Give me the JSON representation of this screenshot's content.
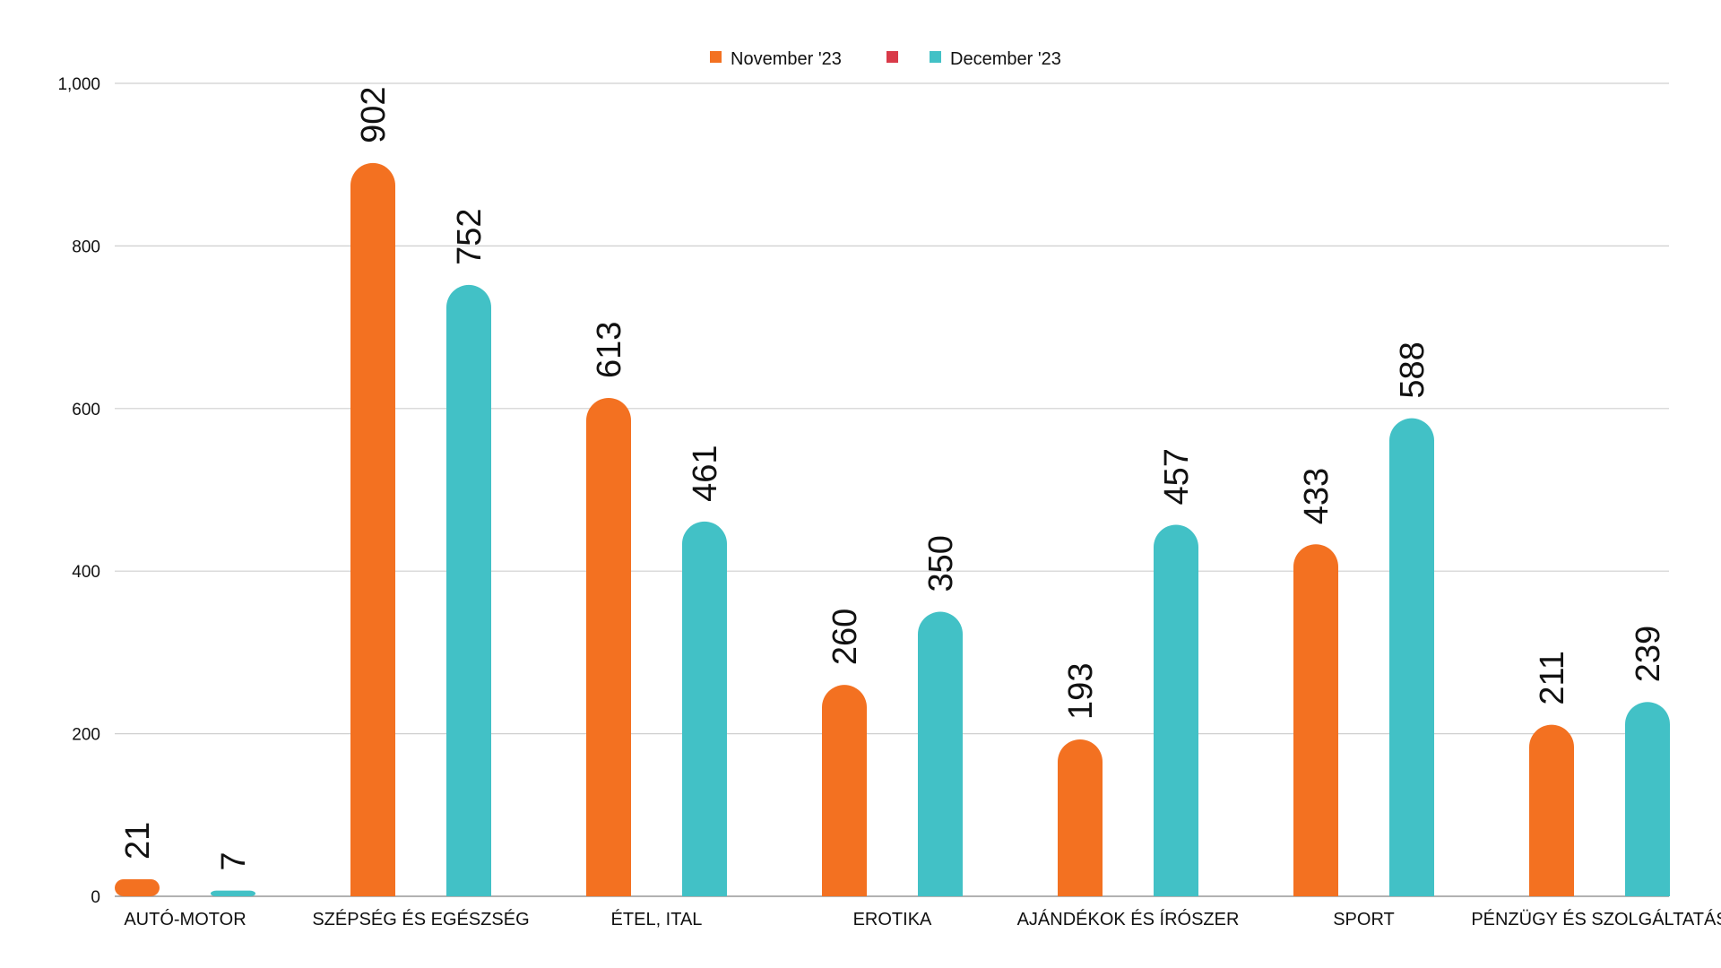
{
  "chart_data": {
    "type": "bar",
    "title": "",
    "xlabel": "",
    "ylabel": "",
    "ylim": [
      0,
      1000
    ],
    "yticks": [
      0,
      200,
      400,
      600,
      800,
      1000
    ],
    "ytick_labels": [
      "0",
      "200",
      "400",
      "600",
      "800",
      "1,000"
    ],
    "categories": [
      "AUTÓ-MOTOR",
      "SZÉPSÉG ÉS EGÉSZSÉG",
      "ÉTEL, ITAL",
      "EROTIKA",
      "AJÁNDÉKOK ÉS ÍRÓSZER",
      "SPORT",
      "PÉNZÜGY ÉS SZOLGÁLTATÁS"
    ],
    "series": [
      {
        "name": "November '23",
        "color": "#f37121",
        "values": [
          21,
          902,
          613,
          260,
          193,
          433,
          211
        ]
      },
      {
        "name": "December '23",
        "color": "#42c1c6",
        "values": [
          7,
          752,
          461,
          350,
          457,
          588,
          239
        ]
      }
    ],
    "legend": {
      "position": "top-center",
      "items": [
        {
          "label": "November '23",
          "color": "#f37121"
        },
        {
          "label": "",
          "color": "#d93a49"
        },
        {
          "label": "December '23",
          "color": "#42c1c6"
        }
      ]
    },
    "grid": true
  }
}
